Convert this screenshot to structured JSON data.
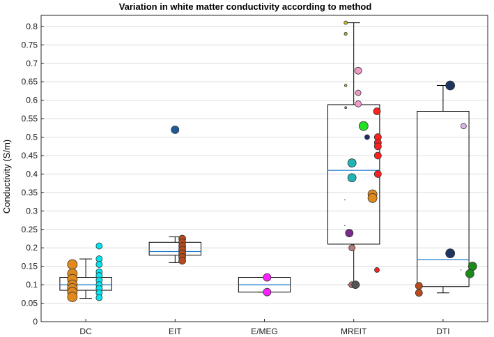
{
  "chart_data": {
    "type": "box",
    "title": "Variation in white matter conductivity according to method",
    "xlabel": "",
    "ylabel": "Conductivity (S/m)",
    "ylim": [
      0,
      0.83
    ],
    "yticks": [
      0,
      0.05,
      0.1,
      0.15,
      0.2,
      0.25,
      0.3,
      0.35,
      0.4,
      0.45,
      0.5,
      0.55,
      0.6,
      0.65,
      0.7,
      0.75,
      0.8
    ],
    "ytick_labels": [
      "0",
      "0.05",
      "0.1",
      "0.15",
      "0.2",
      "0.25",
      "0.3",
      "0.35",
      "0.4",
      "0.45",
      "0.5",
      "0.55",
      "0.6",
      "0.65",
      "0.7",
      "0.75",
      "0.8"
    ],
    "grid": true,
    "colors": {
      "median": "#1f78c8",
      "box": "#000000",
      "grid": "#dcdcdc"
    },
    "categories": [
      "DC",
      "EIT",
      "E/MEG",
      "MREIT",
      "DTI"
    ],
    "boxes": [
      {
        "name": "DC",
        "whisker_low": 0.063,
        "q1": 0.085,
        "median": 0.1,
        "q3": 0.12,
        "whisker_high": 0.17
      },
      {
        "name": "EIT",
        "whisker_low": 0.16,
        "q1": 0.18,
        "median": 0.19,
        "q3": 0.215,
        "whisker_high": 0.23
      },
      {
        "name": "E/MEG",
        "whisker_low": 0.08,
        "q1": 0.08,
        "median": 0.1,
        "q3": 0.12,
        "whisker_high": 0.12
      },
      {
        "name": "MREIT",
        "whisker_low": 0.1,
        "q1": 0.21,
        "median": 0.41,
        "q3": 0.588,
        "whisker_high": 0.81
      },
      {
        "name": "DTI",
        "whisker_low": 0.078,
        "q1": 0.095,
        "median": 0.168,
        "q3": 0.57,
        "whisker_high": 0.64
      }
    ],
    "points": [
      {
        "group": "DC",
        "dx": -0.15,
        "value": 0.155,
        "color": "#e08a1e",
        "size": 7
      },
      {
        "group": "DC",
        "dx": -0.15,
        "value": 0.13,
        "color": "#e08a1e",
        "size": 7
      },
      {
        "group": "DC",
        "dx": -0.15,
        "value": 0.115,
        "color": "#e08a1e",
        "size": 7
      },
      {
        "group": "DC",
        "dx": -0.15,
        "value": 0.1,
        "color": "#e08a1e",
        "size": 7
      },
      {
        "group": "DC",
        "dx": -0.15,
        "value": 0.09,
        "color": "#e08a1e",
        "size": 7
      },
      {
        "group": "DC",
        "dx": -0.15,
        "value": 0.08,
        "color": "#e08a1e",
        "size": 7
      },
      {
        "group": "DC",
        "dx": -0.15,
        "value": 0.067,
        "color": "#e08a1e",
        "size": 7
      },
      {
        "group": "DC",
        "dx": 0.15,
        "value": 0.205,
        "color": "#00e5f0",
        "size": 4.5
      },
      {
        "group": "DC",
        "dx": 0.15,
        "value": 0.17,
        "color": "#00e5f0",
        "size": 4.5
      },
      {
        "group": "DC",
        "dx": 0.15,
        "value": 0.155,
        "color": "#00e5f0",
        "size": 4.5
      },
      {
        "group": "DC",
        "dx": 0.15,
        "value": 0.135,
        "color": "#00e5f0",
        "size": 4.5
      },
      {
        "group": "DC",
        "dx": 0.15,
        "value": 0.125,
        "color": "#00e5f0",
        "size": 4.5
      },
      {
        "group": "DC",
        "dx": 0.15,
        "value": 0.112,
        "color": "#00e5f0",
        "size": 4.5
      },
      {
        "group": "DC",
        "dx": 0.15,
        "value": 0.1,
        "color": "#00e5f0",
        "size": 4.5
      },
      {
        "group": "DC",
        "dx": 0.15,
        "value": 0.09,
        "color": "#00e5f0",
        "size": 4.5
      },
      {
        "group": "DC",
        "dx": 0.15,
        "value": 0.078,
        "color": "#00e5f0",
        "size": 4.5
      },
      {
        "group": "DC",
        "dx": 0.15,
        "value": 0.065,
        "color": "#00e5f0",
        "size": 4.5
      },
      {
        "group": "EIT",
        "dx": 0,
        "value": 0.52,
        "color": "#1e5a9a",
        "size": 5.5
      },
      {
        "group": "EIT",
        "dx": 0.08,
        "value": 0.225,
        "color": "#b84a1e",
        "size": 5
      },
      {
        "group": "EIT",
        "dx": 0.08,
        "value": 0.215,
        "color": "#b84a1e",
        "size": 5
      },
      {
        "group": "EIT",
        "dx": 0.08,
        "value": 0.205,
        "color": "#b84a1e",
        "size": 5
      },
      {
        "group": "EIT",
        "dx": 0.08,
        "value": 0.195,
        "color": "#b84a1e",
        "size": 5
      },
      {
        "group": "EIT",
        "dx": 0.08,
        "value": 0.185,
        "color": "#b84a1e",
        "size": 5
      },
      {
        "group": "EIT",
        "dx": 0.08,
        "value": 0.175,
        "color": "#b84a1e",
        "size": 5
      },
      {
        "group": "EIT",
        "dx": 0.08,
        "value": 0.165,
        "color": "#b84a1e",
        "size": 5
      },
      {
        "group": "E/MEG",
        "dx": 0.03,
        "value": 0.12,
        "color": "#ff22ff",
        "size": 5.5
      },
      {
        "group": "E/MEG",
        "dx": 0.03,
        "value": 0.08,
        "color": "#ff22ff",
        "size": 5.5
      },
      {
        "group": "MREIT",
        "dx": -0.09,
        "value": 0.81,
        "color": "#c9c030",
        "size": 2.5
      },
      {
        "group": "MREIT",
        "dx": -0.09,
        "value": 0.78,
        "color": "#a8b830",
        "size": 2.2
      },
      {
        "group": "MREIT",
        "dx": -0.09,
        "value": 0.64,
        "color": "#a8b830",
        "size": 1.8
      },
      {
        "group": "MREIT",
        "dx": 0.05,
        "value": 0.68,
        "color": "#f09ac8",
        "size": 5
      },
      {
        "group": "MREIT",
        "dx": 0.05,
        "value": 0.62,
        "color": "#f09ac8",
        "size": 4
      },
      {
        "group": "MREIT",
        "dx": 0.05,
        "value": 0.59,
        "color": "#f09ac8",
        "size": 4.5
      },
      {
        "group": "MREIT",
        "dx": -0.09,
        "value": 0.58,
        "color": "#a8b830",
        "size": 1.5
      },
      {
        "group": "MREIT",
        "dx": 0.26,
        "value": 0.57,
        "color": "#ff2020",
        "size": 5
      },
      {
        "group": "MREIT",
        "dx": 0.11,
        "value": 0.53,
        "color": "#22e022",
        "size": 6.5
      },
      {
        "group": "MREIT",
        "dx": 0.15,
        "value": 0.5,
        "color": "#1e2a6a",
        "size": 3.5
      },
      {
        "group": "MREIT",
        "dx": 0.27,
        "value": 0.5,
        "color": "#ff2020",
        "size": 5
      },
      {
        "group": "MREIT",
        "dx": 0.27,
        "value": 0.485,
        "color": "#ff2020",
        "size": 5
      },
      {
        "group": "MREIT",
        "dx": 0.27,
        "value": 0.475,
        "color": "#ff2020",
        "size": 5
      },
      {
        "group": "MREIT",
        "dx": 0.27,
        "value": 0.45,
        "color": "#ff2020",
        "size": 5
      },
      {
        "group": "MREIT",
        "dx": -0.02,
        "value": 0.43,
        "color": "#20b4b4",
        "size": 6
      },
      {
        "group": "MREIT",
        "dx": 0.27,
        "value": 0.4,
        "color": "#ff2020",
        "size": 5
      },
      {
        "group": "MREIT",
        "dx": -0.02,
        "value": 0.39,
        "color": "#20b4b4",
        "size": 6
      },
      {
        "group": "MREIT",
        "dx": 0.21,
        "value": 0.345,
        "color": "#e08a1e",
        "size": 6.5
      },
      {
        "group": "MREIT",
        "dx": 0.21,
        "value": 0.335,
        "color": "#e08a1e",
        "size": 6.5
      },
      {
        "group": "MREIT",
        "dx": -0.1,
        "value": 0.33,
        "color": "#222222",
        "size": 0.7
      },
      {
        "group": "MREIT",
        "dx": -0.1,
        "value": 0.26,
        "color": "#222222",
        "size": 0.7
      },
      {
        "group": "MREIT",
        "dx": -0.05,
        "value": 0.24,
        "color": "#7a2a8a",
        "size": 5.5
      },
      {
        "group": "MREIT",
        "dx": -0.02,
        "value": 0.2,
        "color": "#b87878",
        "size": 4.5
      },
      {
        "group": "MREIT",
        "dx": 0.26,
        "value": 0.14,
        "color": "#ff2020",
        "size": 3.5
      },
      {
        "group": "MREIT",
        "dx": -0.02,
        "value": 0.1,
        "color": "#b87878",
        "size": 4.5
      },
      {
        "group": "MREIT",
        "dx": 0.02,
        "value": 0.1,
        "color": "#555555",
        "size": 5.5
      },
      {
        "group": "DTI",
        "dx": 0.08,
        "value": 0.64,
        "color": "#1e3560",
        "size": 6.5
      },
      {
        "group": "DTI",
        "dx": 0.23,
        "value": 0.53,
        "color": "#d8b4f0",
        "size": 4
      },
      {
        "group": "DTI",
        "dx": 0.08,
        "value": 0.185,
        "color": "#1e3560",
        "size": 6.5
      },
      {
        "group": "DTI",
        "dx": 0.2,
        "value": 0.14,
        "color": "#222222",
        "size": 0.7
      },
      {
        "group": "DTI",
        "dx": 0.33,
        "value": 0.15,
        "color": "#1a8a1a",
        "size": 6
      },
      {
        "group": "DTI",
        "dx": 0.3,
        "value": 0.13,
        "color": "#1a8a1a",
        "size": 6
      },
      {
        "group": "DTI",
        "dx": -0.27,
        "value": 0.097,
        "color": "#b84a1e",
        "size": 5
      },
      {
        "group": "DTI",
        "dx": -0.27,
        "value": 0.078,
        "color": "#b84a1e",
        "size": 5
      }
    ]
  }
}
